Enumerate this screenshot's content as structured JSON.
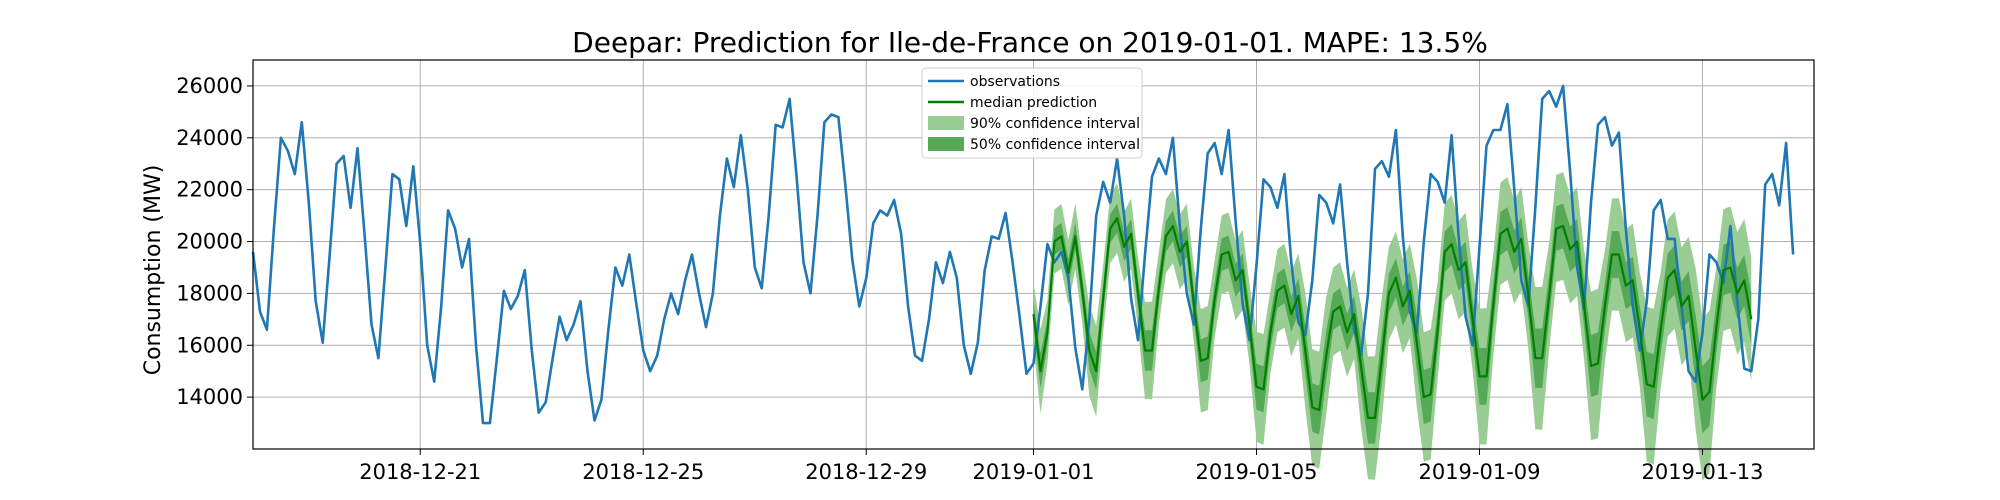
{
  "chart_data": {
    "type": "line",
    "title": "Deepar: Prediction for Ile-de-France on 2019-01-01. MAPE: 13.5%",
    "xlabel": "",
    "ylabel": "Consumption (MW)",
    "x_range": [
      "2018-12-18",
      "2019-01-15"
    ],
    "ylim": [
      12000,
      27000
    ],
    "y_ticks": [
      14000,
      16000,
      18000,
      20000,
      22000,
      24000,
      26000
    ],
    "x_ticks": [
      "2018-12-21",
      "2018-12-25",
      "2018-12-29",
      "2019-01-01",
      "2019-01-05",
      "2019-01-09",
      "2019-01-13"
    ],
    "grid": true,
    "legend_position": "top-center",
    "colors": {
      "observations": "#1f77b4",
      "median": "#008000",
      "ci90": "#9acd94",
      "ci50": "#56a956"
    },
    "legend": [
      {
        "label": "observations",
        "kind": "line",
        "color": "#1f77b4"
      },
      {
        "label": "median prediction",
        "kind": "line",
        "color": "#008000"
      },
      {
        "label": "90% confidence interval",
        "kind": "band",
        "color": "#9acd94"
      },
      {
        "label": "50% confidence interval",
        "kind": "band",
        "color": "#56a956"
      }
    ],
    "series": [
      {
        "name": "observations",
        "start": "2018-12-18",
        "step_hours": 3,
        "values": [
          19600,
          17300,
          16600,
          20500,
          24000,
          23500,
          22600,
          24600,
          21500,
          17700,
          16100,
          19500,
          23000,
          23300,
          21300,
          23600,
          20300,
          16800,
          15500,
          19000,
          22600,
          22400,
          20600,
          22900,
          19900,
          16000,
          14600,
          17500,
          21200,
          20500,
          19000,
          20100,
          16000,
          13000,
          13000,
          15500,
          18100,
          17400,
          17900,
          18900,
          15800,
          13400,
          13800,
          15500,
          17100,
          16200,
          16800,
          17700,
          15000,
          13100,
          13900,
          16600,
          19000,
          18300,
          19500,
          17600,
          15800,
          15000,
          15600,
          17000,
          18000,
          17200,
          18500,
          19500,
          18000,
          16700,
          18000,
          21000,
          23200,
          22100,
          24100,
          22000,
          19000,
          18200,
          21000,
          24500,
          24400,
          25500,
          22500,
          19200,
          18000,
          21000,
          24600,
          24900,
          24800,
          22200,
          19300,
          17500,
          18600,
          20700,
          21200,
          21000,
          21600,
          20300,
          17500,
          15600,
          15400,
          17000,
          19200,
          18400,
          19600,
          18600,
          16000,
          14900,
          16100,
          18900,
          20200,
          20100,
          21100,
          19200,
          17100,
          14900,
          15300,
          17500,
          19900,
          19200,
          19600,
          18600,
          15900,
          14300,
          17000,
          21000,
          22300,
          21500,
          23200,
          21000,
          17800,
          16200,
          19500,
          22500,
          23200,
          22600,
          24000,
          20600,
          18000,
          16800,
          20500,
          23400,
          23800,
          22600,
          24300,
          20800,
          17600,
          16200,
          19100,
          22400,
          22100,
          21300,
          22600,
          19200,
          16900,
          16400,
          18500,
          21800,
          21500,
          20700,
          22200,
          19200,
          16600,
          15600,
          18000,
          22800,
          23100,
          22500,
          24300,
          20200,
          17300,
          16500,
          20000,
          22600,
          22300,
          21500,
          24100,
          20200,
          17100,
          16000,
          19800,
          23700,
          24300,
          24300,
          25300,
          22000,
          18500,
          17500,
          21300,
          25500,
          25800,
          25200,
          26000,
          22700,
          19000,
          17400,
          21500,
          24500,
          24800,
          23700,
          24200,
          20500,
          17500,
          15800,
          17700,
          21200,
          21600,
          20100,
          20100,
          17500,
          15000,
          14600,
          16500,
          19500,
          19200,
          18400,
          20600,
          17700,
          15100,
          15000,
          17000,
          22200,
          22600,
          21400,
          23800,
          19500
        ]
      },
      {
        "name": "median prediction",
        "start": "2019-01-01",
        "step_hours": 3,
        "values": [
          17200,
          15000,
          16500,
          20000,
          20200,
          18800,
          20200,
          18100,
          15800,
          15000,
          17800,
          20500,
          20900,
          19800,
          20300,
          18000,
          15800,
          15800,
          18200,
          20200,
          20600,
          19600,
          20000,
          17600,
          15400,
          15500,
          17800,
          19500,
          19600,
          18500,
          18900,
          16800,
          14400,
          14300,
          16500,
          18100,
          18300,
          17200,
          17900,
          15800,
          13600,
          13500,
          15600,
          17300,
          17500,
          16500,
          17200,
          15200,
          13200,
          13200,
          15500,
          18000,
          18600,
          17500,
          18100,
          16100,
          14000,
          14100,
          16600,
          19600,
          19900,
          18900,
          19200,
          17000,
          14800,
          14800,
          17600,
          20300,
          20500,
          19600,
          20100,
          17900,
          15500,
          15500,
          17900,
          20500,
          20600,
          19700,
          20000,
          17600,
          15200,
          15300,
          17500,
          19500,
          19500,
          18300,
          18500,
          16600,
          14500,
          14400,
          16600,
          18600,
          18900,
          17500,
          17900,
          15900,
          13900,
          14200,
          16700,
          18900,
          19000,
          18000,
          18500,
          17000
        ]
      }
    ]
  }
}
